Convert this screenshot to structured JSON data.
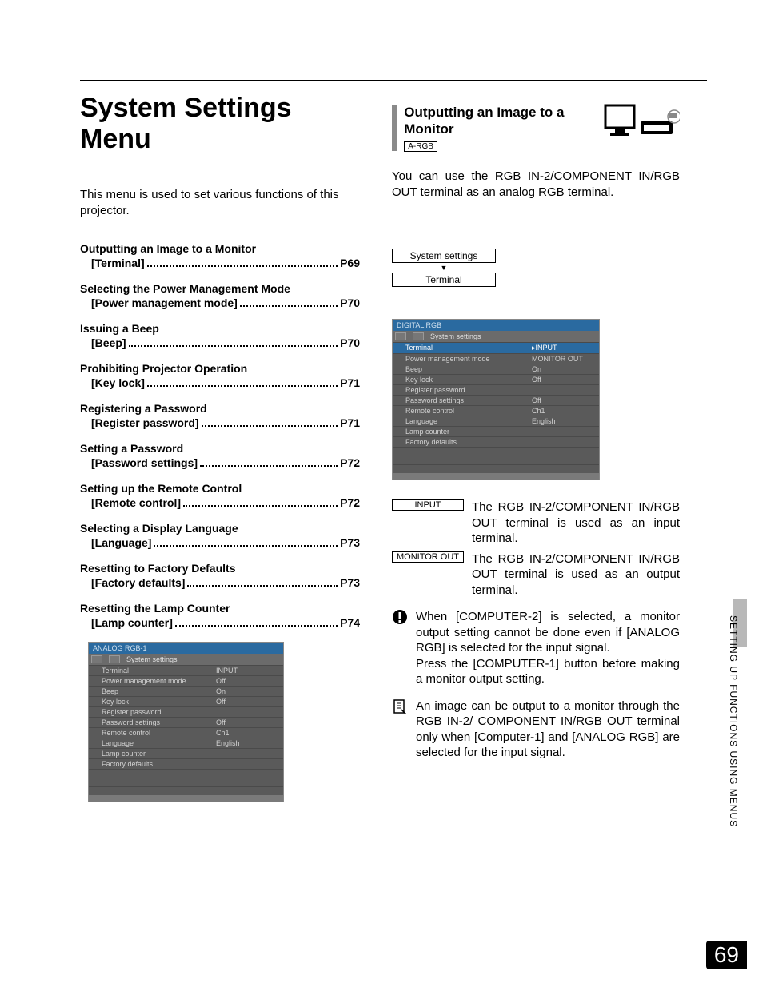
{
  "page_number": "69",
  "side_label": "SETTING UP FUNCTIONS USING MENUS",
  "left": {
    "title": "System Settings Menu",
    "intro": "This menu is used to set various functions of this projector.",
    "toc": [
      {
        "heading": "Outputting an Image to a Monitor",
        "bracket": "[Terminal]",
        "page": "P69"
      },
      {
        "heading": "Selecting the Power Management Mode",
        "bracket": "[Power management mode]",
        "page": "P70"
      },
      {
        "heading": "Issuing a Beep",
        "bracket": "[Beep]",
        "page": "P70"
      },
      {
        "heading": "Prohibiting Projector Operation",
        "bracket": "[Key lock]",
        "page": "P71"
      },
      {
        "heading": "Registering a Password",
        "bracket": "[Register password]",
        "page": "P71"
      },
      {
        "heading": "Setting a Password",
        "bracket": "[Password settings]",
        "page": "P72"
      },
      {
        "heading": "Setting up the Remote Control",
        "bracket": "[Remote control]",
        "page": "P72"
      },
      {
        "heading": "Selecting a Display Language",
        "bracket": "[Language]",
        "page": "P73"
      },
      {
        "heading": "Resetting to Factory Defaults",
        "bracket": "[Factory defaults]",
        "page": "P73"
      },
      {
        "heading": "Resetting the Lamp Counter",
        "bracket": "[Lamp counter]",
        "page": "P74"
      }
    ],
    "osd1": {
      "title": "ANALOG RGB-1",
      "tab_label": "System settings",
      "rows": [
        {
          "key": "Terminal",
          "val": "INPUT",
          "hl": false
        },
        {
          "key": "Power management mode",
          "val": "Off",
          "hl": false
        },
        {
          "key": "Beep",
          "val": "On",
          "hl": false
        },
        {
          "key": "Key lock",
          "val": "Off",
          "hl": false
        },
        {
          "key": "Register password",
          "val": "",
          "hl": false
        },
        {
          "key": "Password settings",
          "val": "Off",
          "hl": false
        },
        {
          "key": "Remote control",
          "val": "Ch1",
          "hl": false
        },
        {
          "key": "Language",
          "val": "English",
          "hl": false
        },
        {
          "key": "Lamp counter",
          "val": "",
          "hl": false
        },
        {
          "key": "Factory defaults",
          "val": "",
          "hl": false
        }
      ]
    }
  },
  "right": {
    "section_title": "Outputting an Image to a Monitor",
    "tag": "A-RGB",
    "intro": "You can use the RGB IN-2/COMPONENT IN/RGB OUT terminal as an analog RGB terminal.",
    "nav_top": "System settings",
    "nav_bottom": "Terminal",
    "osd2": {
      "title": "DIGITAL RGB",
      "tab_label": "System settings",
      "rows": [
        {
          "key": "Terminal",
          "val": "▸INPUT",
          "hl": true,
          "val2": "MONITOR OUT"
        },
        {
          "key": "Power management mode",
          "val": "MONITOR OUT",
          "hl": false
        },
        {
          "key": "Beep",
          "val": "On",
          "hl": false
        },
        {
          "key": "Key lock",
          "val": "Off",
          "hl": false
        },
        {
          "key": "Register password",
          "val": "",
          "hl": false
        },
        {
          "key": "Password settings",
          "val": "Off",
          "hl": false
        },
        {
          "key": "Remote control",
          "val": "Ch1",
          "hl": false
        },
        {
          "key": "Language",
          "val": "English",
          "hl": false
        },
        {
          "key": "Lamp counter",
          "val": "",
          "hl": false
        },
        {
          "key": "Factory defaults",
          "val": "",
          "hl": false
        }
      ]
    },
    "options": [
      {
        "label": "INPUT",
        "text": "The RGB IN-2/COMPONENT IN/RGB OUT terminal is used as an input terminal."
      },
      {
        "label": "MONITOR OUT",
        "text": "The RGB IN-2/COMPONENT IN/RGB OUT terminal is used as an output terminal."
      }
    ],
    "note1": "When [COMPUTER-2] is selected, a monitor output setting cannot be done even if [ANALOG RGB] is selected for the input signal.\nPress the [COMPUTER-1] button before making a monitor output setting.",
    "note2": "An image can be output to a monitor through the RGB IN-2/ COMPONENT IN/RGB OUT terminal only when [Computer-1] and [ANALOG RGB] are selected for the input signal."
  },
  "colors": {
    "osd_bg": "#5a5a5a",
    "osd_title_bg": "#2a6aa0",
    "osd_hl_bg": "#2a6aa0",
    "side_tab_bg": "#b8b8b8",
    "sec_bar": "#8a8a8a"
  }
}
